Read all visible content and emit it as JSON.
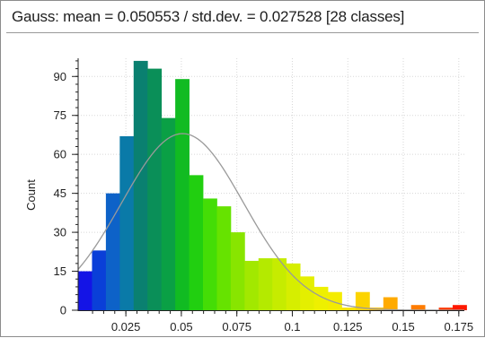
{
  "chart_data": {
    "type": "bar",
    "title": "Gauss: mean = 0.050553 / std.dev. = 0.027528 [28 classes]",
    "xlabel": "",
    "ylabel": "Count",
    "xlim": [
      0.0035,
      0.1775
    ],
    "ylim": [
      0,
      97
    ],
    "xticks": [
      0.025,
      0.05,
      0.075,
      0.1,
      0.125,
      0.15,
      0.175
    ],
    "xtick_labels": [
      "0.025",
      "0.05",
      "0.075",
      "0.1",
      "0.125",
      "0.15",
      "0.175"
    ],
    "yticks": [
      0,
      15,
      30,
      45,
      60,
      75,
      90
    ],
    "ytick_labels": [
      "0",
      "15",
      "30",
      "45",
      "60",
      "75",
      "90"
    ],
    "grid": true,
    "bin_width": 0.00625,
    "bin_starts": [
      0.0035,
      0.00975,
      0.016,
      0.02225,
      0.0285,
      0.03475,
      0.041,
      0.04725,
      0.0535,
      0.05975,
      0.066,
      0.07225,
      0.0785,
      0.08475,
      0.091,
      0.09725,
      0.1035,
      0.10975,
      0.116,
      0.12225,
      0.1285,
      0.13475,
      0.141,
      0.14725,
      0.1535,
      0.15975,
      0.166,
      0.17225
    ],
    "values": [
      15,
      23,
      45,
      67,
      96,
      93,
      74,
      89,
      52,
      43,
      40,
      30,
      19,
      20,
      20,
      18,
      13,
      9,
      7,
      1,
      7,
      1,
      5,
      0,
      2,
      0,
      1,
      2
    ],
    "bar_colors": [
      "#1414e6",
      "#0a3fd8",
      "#0d62c8",
      "#0a7aa8",
      "#0a8070",
      "#0a8f58",
      "#0aa045",
      "#11bb22",
      "#21cf10",
      "#44dd06",
      "#66e300",
      "#88e500",
      "#a2e800",
      "#b4ea00",
      "#c6ec00",
      "#d6ee00",
      "#e4ef00",
      "#eef000",
      "#f4ec00",
      "#f8e200",
      "#fcd400",
      "#ffc000",
      "#ffaa00",
      "#ff9400",
      "#ff7c00",
      "#ff5a00",
      "#ff3a00",
      "#ff1800"
    ],
    "fit_curve": {
      "type": "gaussian",
      "mean": 0.050553,
      "std": 0.027528,
      "peak": 68,
      "color": "#9a9a9a"
    },
    "grid_color": "#d8d8d8"
  }
}
